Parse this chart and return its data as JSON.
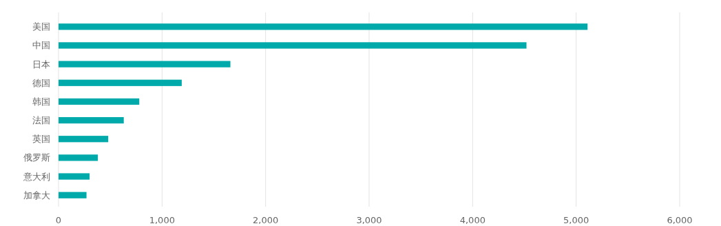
{
  "chart_data": {
    "type": "bar",
    "orientation": "horizontal",
    "categories": [
      "美国",
      "中国",
      "日本",
      "德国",
      "韩国",
      "法国",
      "英国",
      "俄罗斯",
      "意大利",
      "加拿大"
    ],
    "values": [
      5110,
      4520,
      1660,
      1190,
      780,
      630,
      480,
      380,
      300,
      270
    ],
    "color": "#00aaaa",
    "xlim": [
      0,
      6000
    ],
    "xticks": [
      0,
      {
        "value": 1000,
        "label": "1,000"
      },
      {
        "value": 2000,
        "label": "2,000"
      },
      {
        "value": 3000,
        "label": "3,000"
      },
      {
        "value": 4000,
        "label": "4,000"
      },
      {
        "value": 5000,
        "label": "5,000"
      },
      {
        "value": 6000,
        "label": "6,000"
      }
    ],
    "grid": "x"
  }
}
